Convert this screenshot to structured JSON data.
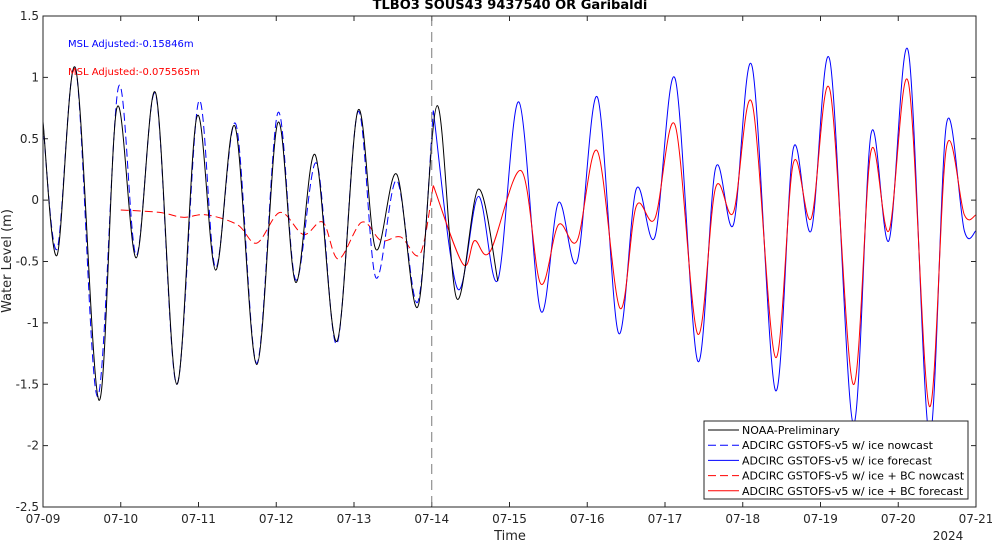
{
  "chart_data": {
    "type": "line",
    "title": "TLBO3 SOUS43 9437540 OR Garibaldi",
    "xlabel": "Time",
    "ylabel": "Water Level (m)",
    "year_label": "2024",
    "xlim": [
      0,
      12
    ],
    "ylim": [
      -2.5,
      1.5
    ],
    "x_ticks": [
      {
        "v": 0,
        "label": "07-09"
      },
      {
        "v": 1,
        "label": "07-10"
      },
      {
        "v": 2,
        "label": "07-11"
      },
      {
        "v": 3,
        "label": "07-12"
      },
      {
        "v": 4,
        "label": "07-13"
      },
      {
        "v": 5,
        "label": "07-14"
      },
      {
        "v": 6,
        "label": "07-15"
      },
      {
        "v": 7,
        "label": "07-16"
      },
      {
        "v": 8,
        "label": "07-17"
      },
      {
        "v": 9,
        "label": "07-18"
      },
      {
        "v": 10,
        "label": "07-19"
      },
      {
        "v": 11,
        "label": "07-20"
      },
      {
        "v": 12,
        "label": "07-21"
      }
    ],
    "y_ticks": [
      {
        "v": 1.5,
        "label": "1.5"
      },
      {
        "v": 1,
        "label": "1"
      },
      {
        "v": 0.5,
        "label": "0.5"
      },
      {
        "v": 0,
        "label": "0"
      },
      {
        "v": -0.5,
        "label": "-0.5"
      },
      {
        "v": -1,
        "label": "-1"
      },
      {
        "v": -1.5,
        "label": "-1.5"
      },
      {
        "v": -2,
        "label": "-2"
      },
      {
        "v": -2.5,
        "label": "-2.5"
      }
    ],
    "nowcast_forecast_split_x": 5,
    "annotations": [
      {
        "text": "MSL Adjusted:-0.15846m",
        "color": "#0000ff"
      },
      {
        "text": "MSL Adjusted:-0.075565m",
        "color": "#ff0000"
      }
    ],
    "legend_position": "bottom-right",
    "series": [
      {
        "name": "NOAA-Preliminary",
        "color": "#000000",
        "dash": "solid",
        "x": [
          0,
          0.18,
          0.42,
          0.72,
          0.95,
          1.2,
          1.45,
          1.72,
          1.98,
          2.22,
          2.47,
          2.75,
          3.02,
          3.25,
          3.5,
          3.78,
          4.05,
          4.28,
          4.55,
          4.82,
          5.07,
          5.32,
          5.6,
          5.85
        ],
        "y": [
          0.64,
          -0.45,
          1.07,
          -1.63,
          0.75,
          -0.47,
          0.87,
          -1.5,
          0.68,
          -0.57,
          0.6,
          -1.34,
          0.63,
          -0.67,
          0.37,
          -1.15,
          0.73,
          -0.4,
          0.21,
          -0.87,
          0.77,
          -0.8,
          0.09,
          -0.66
        ]
      },
      {
        "name": "ADCIRC GSTOFS-v5 w/ ice nowcast",
        "color": "#0000ff",
        "dash": "dash",
        "x": [
          0,
          0.18,
          0.42,
          0.7,
          0.97,
          1.2,
          1.45,
          1.72,
          2.0,
          2.22,
          2.48,
          2.75,
          3.02,
          3.25,
          3.52,
          3.78,
          4.05,
          4.28,
          4.55,
          4.82,
          5.02
        ],
        "y": [
          0.62,
          -0.4,
          1.07,
          -1.6,
          0.92,
          -0.45,
          0.86,
          -1.5,
          0.8,
          -0.55,
          0.62,
          -1.33,
          0.71,
          -0.65,
          0.3,
          -1.17,
          0.72,
          -0.63,
          0.16,
          -0.83,
          0.73
        ]
      },
      {
        "name": "ADCIRC GSTOFS-v5 w/ ice forecast",
        "color": "#0000ff",
        "dash": "solid",
        "x": [
          5.02,
          5.33,
          5.6,
          5.85,
          6.12,
          6.4,
          6.63,
          6.87,
          7.13,
          7.4,
          7.63,
          7.87,
          8.13,
          8.42,
          8.65,
          8.88,
          9.12,
          9.42,
          9.65,
          9.88,
          10.12,
          10.42,
          10.65,
          10.88,
          11.13,
          11.4,
          11.62,
          11.85,
          12
        ],
        "y": [
          0.73,
          -0.72,
          0.03,
          -0.65,
          0.8,
          -0.9,
          -0.02,
          -0.5,
          0.84,
          -1.08,
          0.09,
          -0.3,
          0.99,
          -1.31,
          0.26,
          -0.2,
          1.09,
          -1.55,
          0.42,
          -0.25,
          1.14,
          -1.82,
          0.54,
          -0.33,
          1.21,
          -1.92,
          0.62,
          -0.25,
          -0.25
        ]
      },
      {
        "name": "ADCIRC GSTOFS-v5 w/ ice + BC nowcast",
        "color": "#ff0000",
        "dash": "dash",
        "x": [
          1.0,
          1.5,
          1.8,
          2.1,
          2.5,
          2.75,
          3.05,
          3.35,
          3.6,
          3.8,
          4.1,
          4.35,
          4.6,
          4.85,
          5.02
        ],
        "y": [
          -0.08,
          -0.1,
          -0.14,
          -0.12,
          -0.2,
          -0.35,
          -0.1,
          -0.28,
          -0.18,
          -0.48,
          -0.18,
          -0.33,
          -0.3,
          -0.44,
          0.12
        ]
      },
      {
        "name": "ADCIRC GSTOFS-v5 w/ ice + BC forecast",
        "color": "#ff0000",
        "dash": "solid",
        "x": [
          5.02,
          5.4,
          5.55,
          5.75,
          6.15,
          6.4,
          6.63,
          6.87,
          7.13,
          7.42,
          7.63,
          7.87,
          8.13,
          8.42,
          8.65,
          8.88,
          9.12,
          9.42,
          9.65,
          9.88,
          10.12,
          10.42,
          10.65,
          10.88,
          11.13,
          11.4,
          11.62,
          11.85,
          12
        ],
        "y": [
          0.12,
          -0.52,
          -0.33,
          -0.42,
          0.24,
          -0.68,
          -0.2,
          -0.33,
          0.4,
          -0.88,
          -0.05,
          -0.15,
          0.61,
          -1.09,
          0.1,
          -0.1,
          0.79,
          -1.28,
          0.3,
          -0.15,
          0.9,
          -1.5,
          0.4,
          -0.25,
          0.96,
          -1.68,
          0.43,
          -0.12,
          -0.12
        ]
      }
    ]
  }
}
